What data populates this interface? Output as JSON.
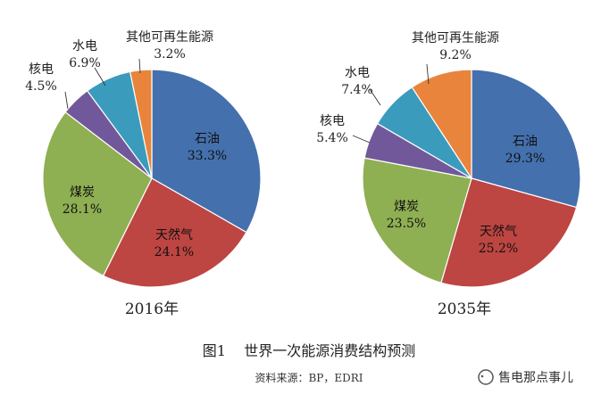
{
  "chart_data": [
    {
      "type": "pie",
      "year_label": "2016年",
      "slices": [
        {
          "name": "石油",
          "value": 33.3,
          "label": "33.3%",
          "color": "#4470ad"
        },
        {
          "name": "天然气",
          "value": 24.1,
          "label": "24.1%",
          "color": "#bd4542"
        },
        {
          "name": "煤炭",
          "value": 28.1,
          "label": "28.1%",
          "color": "#8faf53"
        },
        {
          "name": "核电",
          "value": 4.5,
          "label": "4.5%",
          "color": "#71589a"
        },
        {
          "name": "水电",
          "value": 6.9,
          "label": "6.9%",
          "color": "#3a9bbd"
        },
        {
          "name": "其他可再生能源",
          "value": 3.2,
          "label": "3.2%",
          "color": "#e8843b"
        }
      ]
    },
    {
      "type": "pie",
      "year_label": "2035年",
      "slices": [
        {
          "name": "石油",
          "value": 29.3,
          "label": "29.3%",
          "color": "#4470ad"
        },
        {
          "name": "天然气",
          "value": 25.2,
          "label": "25.2%",
          "color": "#bd4542"
        },
        {
          "name": "煤炭",
          "value": 23.5,
          "label": "23.5%",
          "color": "#8faf53"
        },
        {
          "name": "核电",
          "value": 5.4,
          "label": "5.4%",
          "color": "#71589a"
        },
        {
          "name": "水电",
          "value": 7.4,
          "label": "7.4%",
          "color": "#3a9bbd"
        },
        {
          "name": "其他可再生能源",
          "value": 9.2,
          "label": "9.2%",
          "color": "#e8843b"
        }
      ]
    }
  ],
  "figure_caption": "图1    世界一次能源消费结构预测",
  "source_note": "资料来源：BP，EDRI",
  "watermark": "售电那点事儿"
}
